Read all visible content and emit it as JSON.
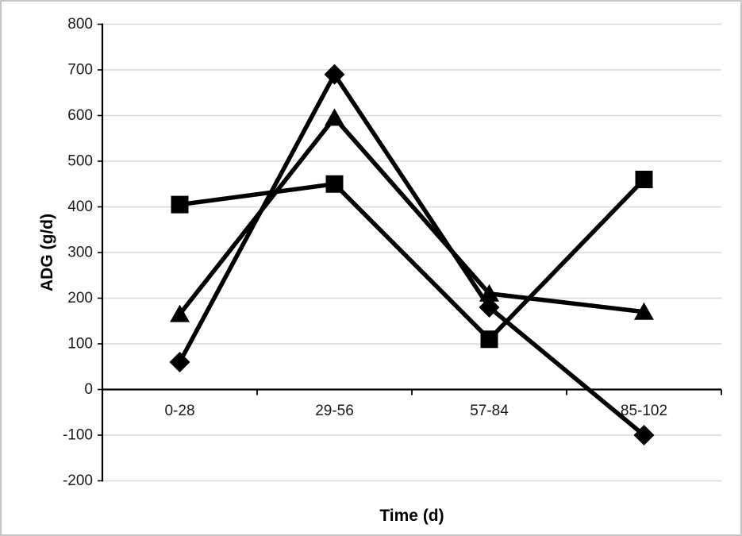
{
  "window": {
    "background_color": "#ffffff",
    "border_color": "#c6c6c6"
  },
  "chart_data": {
    "type": "line",
    "title": "",
    "xlabel": "Time (d)",
    "ylabel": "ADG (g/d)",
    "categories": [
      "0-28",
      "29-56",
      "57-84",
      "85-102"
    ],
    "series": [
      {
        "name": "series-square",
        "marker": "square",
        "values": [
          405,
          450,
          110,
          460
        ]
      },
      {
        "name": "series-triangle",
        "marker": "triangle",
        "values": [
          165,
          595,
          210,
          170
        ]
      },
      {
        "name": "series-diamond",
        "marker": "diamond",
        "values": [
          60,
          690,
          180,
          -100
        ]
      }
    ],
    "ylim": [
      -200,
      800
    ],
    "ytick_step": 100,
    "ytick_labels": [
      "800",
      "700",
      "600",
      "500",
      "400",
      "300",
      "200",
      "100",
      "0",
      "-100",
      "-200"
    ],
    "grid": true,
    "legend": "none",
    "line_color": "#000000",
    "axis_color": "#000000",
    "gridline_color": "#d9d9d9",
    "tick_label_color": "#1a1a1a"
  }
}
